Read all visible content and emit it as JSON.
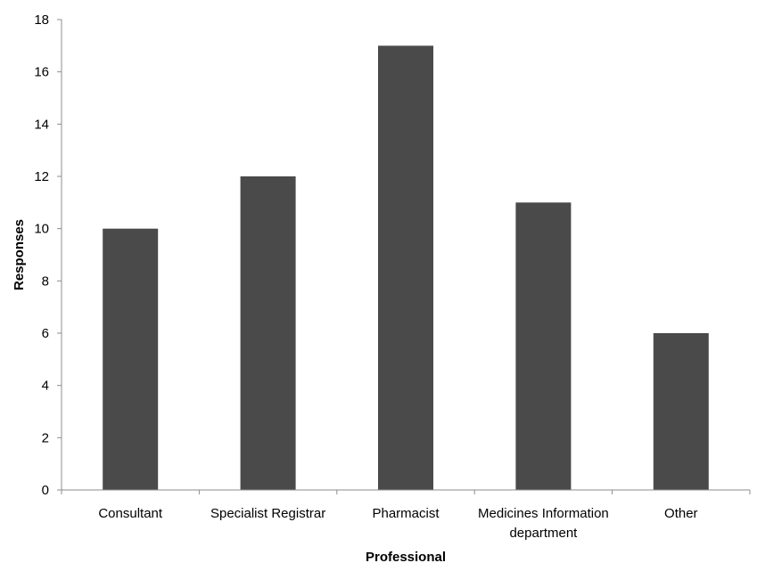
{
  "chart_data": {
    "type": "bar",
    "categories": [
      [
        "Consultant"
      ],
      [
        "Specialist Registrar"
      ],
      [
        "Pharmacist"
      ],
      [
        "Medicines Information",
        "department"
      ],
      [
        "Other"
      ]
    ],
    "values": [
      10,
      12,
      17,
      11,
      6
    ],
    "title": "",
    "xlabel": "Professional",
    "ylabel": "Responses",
    "ylim": [
      0,
      18
    ],
    "yticks": [
      0,
      2,
      4,
      6,
      8,
      10,
      12,
      14,
      16,
      18
    ],
    "grid": false,
    "legend": "none",
    "bar_color": "#4a4a4a",
    "axis_color": "#8c8c8c"
  }
}
